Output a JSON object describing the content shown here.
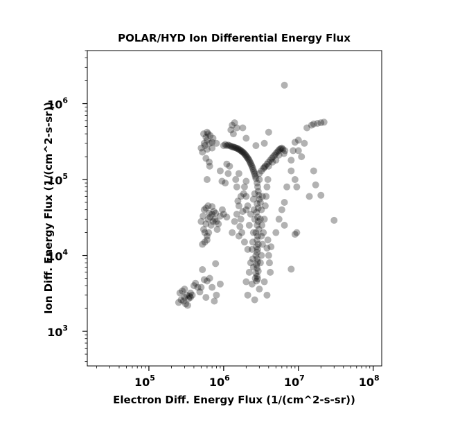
{
  "chart_data": {
    "type": "scatter",
    "title": "POLAR/HYD  Ion Differential Energy Flux",
    "xlabel": "Electron Diff. Energy Flux (1/(cm^2-s-sr))",
    "ylabel": "Ion Diff. Energy Flux (1/(cm^2-s-sr))",
    "x_scale": "log",
    "y_scale": "log",
    "xlim": [
      15000,
      130000000
    ],
    "ylim": [
      350,
      5000000
    ],
    "x_ticks": [
      {
        "base": "10",
        "exp": "5",
        "value": 100000
      },
      {
        "base": "10",
        "exp": "6",
        "value": 1000000
      },
      {
        "base": "10",
        "exp": "7",
        "value": 10000000
      },
      {
        "base": "10",
        "exp": "8",
        "value": 100000000
      }
    ],
    "y_ticks": [
      {
        "base": "10",
        "exp": "3",
        "value": 1000
      },
      {
        "base": "10",
        "exp": "4",
        "value": 10000
      },
      {
        "base": "10",
        "exp": "5",
        "value": 100000
      },
      {
        "base": "10",
        "exp": "6",
        "value": 1000000
      }
    ],
    "grid": false,
    "marker_color": "#000000",
    "marker_opacity": 0.3,
    "points": [
      [
        250000,
        2400
      ],
      [
        270000,
        2600
      ],
      [
        280000,
        3400
      ],
      [
        300000,
        2800
      ],
      [
        320000,
        3000
      ],
      [
        330000,
        2200
      ],
      [
        350000,
        2900
      ],
      [
        360000,
        2800
      ],
      [
        380000,
        3000
      ],
      [
        300000,
        3600
      ],
      [
        260000,
        3200
      ],
      [
        290000,
        2500
      ],
      [
        340000,
        2700
      ],
      [
        310000,
        2300
      ],
      [
        400000,
        4000
      ],
      [
        450000,
        3800
      ],
      [
        420000,
        4300
      ],
      [
        500000,
        3800
      ],
      [
        550000,
        4800
      ],
      [
        600000,
        4600
      ],
      [
        650000,
        5000
      ],
      [
        700000,
        3800
      ],
      [
        750000,
        2500
      ],
      [
        800000,
        3000
      ],
      [
        900000,
        4200
      ],
      [
        780000,
        7800
      ],
      [
        520000,
        6500
      ],
      [
        580000,
        2800
      ],
      [
        480000,
        3300
      ],
      [
        360000,
        3200
      ],
      [
        520000,
        14000
      ],
      [
        560000,
        15000
      ],
      [
        600000,
        18000
      ],
      [
        540000,
        22000
      ],
      [
        580000,
        26000
      ],
      [
        620000,
        30000
      ],
      [
        660000,
        32000
      ],
      [
        700000,
        35000
      ],
      [
        740000,
        38000
      ],
      [
        680000,
        25000
      ],
      [
        630000,
        20000
      ],
      [
        760000,
        30000
      ],
      [
        800000,
        28000
      ],
      [
        580000,
        42000
      ],
      [
        620000,
        45000
      ],
      [
        550000,
        40000
      ],
      [
        500000,
        28000
      ],
      [
        530000,
        33000
      ],
      [
        700000,
        44000
      ],
      [
        900000,
        33000
      ],
      [
        1000000,
        35000
      ],
      [
        1100000,
        32000
      ],
      [
        850000,
        26000
      ],
      [
        960000,
        40000
      ],
      [
        820000,
        22000
      ],
      [
        600000,
        16000
      ],
      [
        560000,
        20000
      ],
      [
        640000,
        36000
      ],
      [
        720000,
        28000
      ],
      [
        780000,
        36000
      ],
      [
        500000,
        260000
      ],
      [
        550000,
        300000
      ],
      [
        600000,
        330000
      ],
      [
        650000,
        300000
      ],
      [
        700000,
        260000
      ],
      [
        540000,
        400000
      ],
      [
        600000,
        420000
      ],
      [
        660000,
        380000
      ],
      [
        720000,
        350000
      ],
      [
        520000,
        230000
      ],
      [
        580000,
        190000
      ],
      [
        640000,
        170000
      ],
      [
        600000,
        250000
      ],
      [
        560000,
        280000
      ],
      [
        700000,
        310000
      ],
      [
        800000,
        300000
      ],
      [
        620000,
        400000
      ],
      [
        580000,
        360000
      ],
      [
        600000,
        100000
      ],
      [
        650000,
        150000
      ],
      [
        1000000,
        280000
      ],
      [
        1050000,
        290000
      ],
      [
        1100000,
        280000
      ],
      [
        1150000,
        285000
      ],
      [
        1200000,
        280000
      ],
      [
        1250000,
        275000
      ],
      [
        1300000,
        270000
      ],
      [
        1350000,
        268000
      ],
      [
        1400000,
        265000
      ],
      [
        1450000,
        262000
      ],
      [
        1500000,
        258000
      ],
      [
        1550000,
        255000
      ],
      [
        1600000,
        250000
      ],
      [
        1650000,
        245000
      ],
      [
        1700000,
        240000
      ],
      [
        1750000,
        235000
      ],
      [
        1800000,
        230000
      ],
      [
        1850000,
        225000
      ],
      [
        1900000,
        218000
      ],
      [
        1950000,
        212000
      ],
      [
        2000000,
        205000
      ],
      [
        2050000,
        198000
      ],
      [
        2100000,
        192000
      ],
      [
        2150000,
        185000
      ],
      [
        2200000,
        178000
      ],
      [
        2250000,
        170000
      ],
      [
        2300000,
        162000
      ],
      [
        2350000,
        155000
      ],
      [
        2400000,
        148000
      ],
      [
        2450000,
        140000
      ],
      [
        2500000,
        132000
      ],
      [
        2550000,
        125000
      ],
      [
        2600000,
        118000
      ],
      [
        2650000,
        110000
      ],
      [
        2700000,
        103000
      ],
      [
        3000000,
        120000
      ],
      [
        3200000,
        130000
      ],
      [
        3400000,
        140000
      ],
      [
        3600000,
        150000
      ],
      [
        3800000,
        160000
      ],
      [
        4000000,
        170000
      ],
      [
        4200000,
        180000
      ],
      [
        4400000,
        190000
      ],
      [
        4600000,
        200000
      ],
      [
        4800000,
        210000
      ],
      [
        5000000,
        220000
      ],
      [
        5200000,
        230000
      ],
      [
        5400000,
        240000
      ],
      [
        5600000,
        250000
      ],
      [
        5800000,
        255000
      ],
      [
        6000000,
        260000
      ],
      [
        6200000,
        250000
      ],
      [
        5500000,
        210000
      ],
      [
        4500000,
        170000
      ],
      [
        3500000,
        145000
      ],
      [
        6400000,
        220000
      ],
      [
        6600000,
        240000
      ],
      [
        5000000,
        180000
      ],
      [
        4000000,
        150000
      ],
      [
        3000000,
        100000
      ],
      [
        2800000,
        90000
      ],
      [
        2850000,
        80000
      ],
      [
        2900000,
        70000
      ],
      [
        2950000,
        62000
      ],
      [
        3000000,
        55000
      ],
      [
        2800000,
        48000
      ],
      [
        2900000,
        42000
      ],
      [
        2750000,
        37000
      ],
      [
        2850000,
        32000
      ],
      [
        2900000,
        28000
      ],
      [
        2800000,
        25000
      ],
      [
        2950000,
        22000
      ],
      [
        2700000,
        20000
      ],
      [
        2850000,
        18000
      ],
      [
        2800000,
        16000
      ],
      [
        2900000,
        14000
      ],
      [
        2750000,
        13000
      ],
      [
        2850000,
        12000
      ],
      [
        2800000,
        11000
      ],
      [
        2700000,
        10000
      ],
      [
        2800000,
        9000
      ],
      [
        2850000,
        8200
      ],
      [
        2750000,
        7500
      ],
      [
        2800000,
        6800
      ],
      [
        2900000,
        6200
      ],
      [
        2700000,
        5800
      ],
      [
        2800000,
        5300
      ],
      [
        2850000,
        4900
      ],
      [
        2750000,
        4600
      ],
      [
        2650000,
        5000
      ],
      [
        2600000,
        30000
      ],
      [
        2550000,
        40000
      ],
      [
        2500000,
        55000
      ],
      [
        2600000,
        65000
      ],
      [
        3100000,
        50000
      ],
      [
        3200000,
        40000
      ],
      [
        3100000,
        30000
      ],
      [
        3300000,
        60000
      ],
      [
        3250000,
        25000
      ],
      [
        3200000,
        18000
      ],
      [
        2500000,
        20000
      ],
      [
        2450000,
        15000
      ],
      [
        2400000,
        12000
      ],
      [
        2450000,
        9000
      ],
      [
        2500000,
        7000
      ],
      [
        3100000,
        8000
      ],
      [
        3200000,
        10000
      ],
      [
        3300000,
        14000
      ],
      [
        3400000,
        20000
      ],
      [
        3500000,
        30000
      ],
      [
        3600000,
        45000
      ],
      [
        3700000,
        60000
      ],
      [
        3800000,
        80000
      ],
      [
        2300000,
        35000
      ],
      [
        2200000,
        25000
      ],
      [
        2100000,
        45000
      ],
      [
        2000000,
        60000
      ],
      [
        1900000,
        80000
      ],
      [
        2000000,
        95000
      ],
      [
        3900000,
        100000
      ],
      [
        1800000,
        38000
      ],
      [
        1700000,
        30000
      ],
      [
        1650000,
        24000
      ],
      [
        1750000,
        20000
      ],
      [
        1600000,
        45000
      ],
      [
        1500000,
        35000
      ],
      [
        1550000,
        52000
      ],
      [
        1700000,
        60000
      ],
      [
        1850000,
        65000
      ],
      [
        2000000,
        40000
      ],
      [
        1400000,
        28000
      ],
      [
        1300000,
        20000
      ],
      [
        1600000,
        18000
      ],
      [
        1900000,
        15000
      ],
      [
        2100000,
        12000
      ],
      [
        2300000,
        8000
      ],
      [
        2200000,
        6000
      ],
      [
        2000000,
        4500
      ],
      [
        2400000,
        4200
      ],
      [
        2600000,
        2600
      ],
      [
        2100000,
        3000
      ],
      [
        3000000,
        3600
      ],
      [
        3500000,
        4500
      ],
      [
        3800000,
        3000
      ],
      [
        4200000,
        6000
      ],
      [
        4100000,
        8000
      ],
      [
        4000000,
        10000
      ],
      [
        3800000,
        12500
      ],
      [
        3900000,
        16000
      ],
      [
        4300000,
        13000
      ],
      [
        6500000,
        1750000
      ],
      [
        4000000,
        420000
      ],
      [
        3500000,
        300000
      ],
      [
        1300000,
        520000
      ],
      [
        1400000,
        560000
      ],
      [
        1500000,
        480000
      ],
      [
        1250000,
        450000
      ],
      [
        1350000,
        400000
      ],
      [
        1800000,
        480000
      ],
      [
        2000000,
        350000
      ],
      [
        2700000,
        280000
      ],
      [
        1100000,
        160000
      ],
      [
        1200000,
        150000
      ],
      [
        900000,
        130000
      ],
      [
        950000,
        95000
      ],
      [
        1050000,
        90000
      ],
      [
        1150000,
        120000
      ],
      [
        1500000,
        80000
      ],
      [
        1600000,
        120000
      ],
      [
        1450000,
        100000
      ],
      [
        15000000,
        520000
      ],
      [
        16000000,
        540000
      ],
      [
        18000000,
        550000
      ],
      [
        20000000,
        560000
      ],
      [
        22000000,
        570000
      ],
      [
        13000000,
        480000
      ],
      [
        12000000,
        300000
      ],
      [
        10000000,
        330000
      ],
      [
        9000000,
        310000
      ],
      [
        8500000,
        240000
      ],
      [
        10000000,
        240000
      ],
      [
        11000000,
        200000
      ],
      [
        8000000,
        180000
      ],
      [
        9000000,
        100000
      ],
      [
        9500000,
        80000
      ],
      [
        8000000,
        130000
      ],
      [
        17000000,
        85000
      ],
      [
        14000000,
        60000
      ],
      [
        20000000,
        62000
      ],
      [
        16000000,
        130000
      ],
      [
        7000000,
        80000
      ],
      [
        6500000,
        50000
      ],
      [
        6000000,
        40000
      ],
      [
        5500000,
        30000
      ],
      [
        6500000,
        25000
      ],
      [
        5000000,
        20000
      ],
      [
        9500000,
        20000
      ],
      [
        9000000,
        19000
      ],
      [
        30000000,
        29000
      ],
      [
        8000000,
        6600
      ]
    ]
  }
}
